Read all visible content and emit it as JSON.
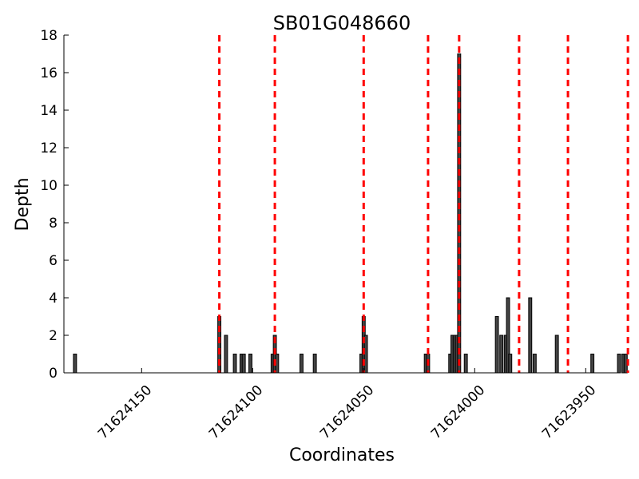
{
  "chart_data": {
    "type": "bar",
    "title": "SB01G048660",
    "xlabel": "Coordinates",
    "ylabel": "Depth",
    "x_reversed": true,
    "xlim": [
      71624185,
      71623935
    ],
    "ylim": [
      0,
      18
    ],
    "x_ticks": [
      71624150,
      71624100,
      71624050,
      71624000,
      71623950
    ],
    "y_ticks": [
      0,
      2,
      4,
      6,
      8,
      10,
      12,
      14,
      16,
      18
    ],
    "grid": false,
    "bar_color": "#000000",
    "marker_color": "#ff0000",
    "series": [
      {
        "values": [
          [
            71624180,
            1
          ],
          [
            71624115,
            3
          ],
          [
            71624112,
            2
          ],
          [
            71624108,
            1
          ],
          [
            71624105,
            1
          ],
          [
            71624104,
            1
          ],
          [
            71624101,
            1
          ],
          [
            71624091,
            1
          ],
          [
            71624090,
            2
          ],
          [
            71624089,
            1
          ],
          [
            71624078,
            1
          ],
          [
            71624072,
            1
          ],
          [
            71624051,
            1
          ],
          [
            71624050,
            3
          ],
          [
            71624049,
            2
          ],
          [
            71624022,
            1
          ],
          [
            71624021,
            1
          ],
          [
            71624011,
            1
          ],
          [
            71624010,
            2
          ],
          [
            71624009,
            2
          ],
          [
            71624008,
            2
          ],
          [
            71624007,
            17
          ],
          [
            71624004,
            1
          ],
          [
            71623990,
            3
          ],
          [
            71623988,
            2
          ],
          [
            71623986,
            2
          ],
          [
            71623985,
            4
          ],
          [
            71623984,
            1
          ],
          [
            71623975,
            4
          ],
          [
            71623973,
            1
          ],
          [
            71623963,
            2
          ],
          [
            71623947,
            1
          ],
          [
            71623935,
            1
          ],
          [
            71623933,
            1
          ],
          [
            71623932,
            1
          ]
        ]
      }
    ],
    "vertical_lines": [
      71624115,
      71624090,
      71624050,
      71624021,
      71624007,
      71623980,
      71623958,
      71623931
    ]
  }
}
